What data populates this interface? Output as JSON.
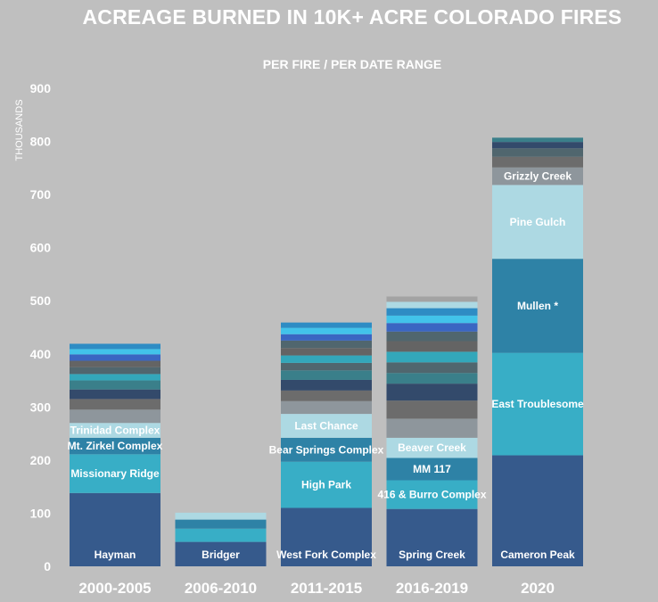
{
  "chart_data": {
    "type": "bar",
    "stacked": true,
    "title": "ACREAGE BURNED IN 10K+ ACRE COLORADO FIRES",
    "subtitle": "PER FIRE / PER DATE RANGE",
    "ylabel": "THOUSANDS",
    "xlabel": "",
    "ylim": [
      0,
      900
    ],
    "yticks": [
      0,
      100,
      200,
      300,
      400,
      500,
      600,
      700,
      800,
      900
    ],
    "grid": false,
    "categories": [
      "2000-2005",
      "2006-2010",
      "2011-2015",
      "2016-2019",
      "2020"
    ],
    "stacks": [
      {
        "category": "2000-2005",
        "segments": [
          {
            "label": "Hayman",
            "value": 138,
            "color": "#365a8c"
          },
          {
            "label": "Missionary Ridge",
            "value": 73,
            "color": "#38aec6"
          },
          {
            "label": "Mt. Zirkel Complex",
            "value": 31,
            "color": "#2e82a6"
          },
          {
            "label": "Trinidad Complex",
            "value": 28,
            "color": "#add9e3"
          },
          {
            "value": 25,
            "color": "#8e969c"
          },
          {
            "value": 20,
            "color": "#6c6c6c"
          },
          {
            "value": 18,
            "color": "#334a6b"
          },
          {
            "value": 17,
            "color": "#3a7f8a"
          },
          {
            "value": 12,
            "color": "#33a7ba"
          },
          {
            "value": 13,
            "color": "#50666e"
          },
          {
            "value": 12,
            "color": "#646464"
          },
          {
            "value": 12,
            "color": "#3a66c2"
          },
          {
            "value": 10,
            "color": "#42c3ea"
          },
          {
            "value": 10,
            "color": "#2e8cc4"
          }
        ]
      },
      {
        "category": "2006-2010",
        "segments": [
          {
            "label": "Bridger",
            "value": 46,
            "color": "#365a8c"
          },
          {
            "value": 25,
            "color": "#38aec6"
          },
          {
            "value": 17,
            "color": "#2e82a6"
          },
          {
            "value": 13,
            "color": "#add9e3"
          }
        ]
      },
      {
        "category": "2011-2015",
        "segments": [
          {
            "label": "West Fork  Complex",
            "value": 110,
            "color": "#365a8c"
          },
          {
            "label": "High Park",
            "value": 87,
            "color": "#38aec6"
          },
          {
            "label": "Bear Springs Complex",
            "value": 45,
            "color": "#2e82a6"
          },
          {
            "label": "Last Chance",
            "value": 45,
            "color": "#add9e3"
          },
          {
            "value": 24,
            "color": "#8e969c"
          },
          {
            "value": 20,
            "color": "#6c6c6c"
          },
          {
            "value": 20,
            "color": "#334a6b"
          },
          {
            "value": 18,
            "color": "#3a7f8a"
          },
          {
            "value": 14,
            "color": "#50666e"
          },
          {
            "value": 14,
            "color": "#33a7ba"
          },
          {
            "value": 14,
            "color": "#646464"
          },
          {
            "value": 14,
            "color": "#50666e"
          },
          {
            "value": 12,
            "color": "#3a66c2"
          },
          {
            "value": 12,
            "color": "#42c3ea"
          },
          {
            "value": 10,
            "color": "#2e8cc4"
          }
        ]
      },
      {
        "category": "2016-2019",
        "segments": [
          {
            "label": "Spring Creek",
            "value": 108,
            "color": "#365a8c"
          },
          {
            "label": "416 & Burro  Complex",
            "value": 54,
            "color": "#38aec6"
          },
          {
            "label": "MM 117",
            "value": 42,
            "color": "#2e82a6"
          },
          {
            "label": "Beaver Creek",
            "value": 38,
            "color": "#add9e3"
          },
          {
            "value": 36,
            "color": "#8e969c"
          },
          {
            "value": 34,
            "color": "#6c6c6c"
          },
          {
            "value": 32,
            "color": "#334a6b"
          },
          {
            "value": 20,
            "color": "#3a7f8a"
          },
          {
            "value": 20,
            "color": "#50666e"
          },
          {
            "value": 20,
            "color": "#33a7ba"
          },
          {
            "value": 20,
            "color": "#646464"
          },
          {
            "value": 18,
            "color": "#50666e"
          },
          {
            "value": 16,
            "color": "#3a66c2"
          },
          {
            "value": 14,
            "color": "#42c3ea"
          },
          {
            "value": 14,
            "color": "#2e8cc4"
          },
          {
            "value": 12,
            "color": "#add9e3"
          },
          {
            "value": 10,
            "color": "#a3a3a3"
          }
        ]
      },
      {
        "category": "2020",
        "segments": [
          {
            "label": "Cameron Peak",
            "value": 209,
            "color": "#365a8c"
          },
          {
            "label": "East Troublesome",
            "value": 193,
            "color": "#38aec6"
          },
          {
            "label": "Mullen *",
            "value": 177,
            "color": "#2e82a6"
          },
          {
            "label": "Pine Gulch",
            "value": 139,
            "color": "#add9e3"
          },
          {
            "label": "Grizzly Creek",
            "value": 33,
            "color": "#8e969c"
          },
          {
            "value": 20,
            "color": "#6c6c6c"
          },
          {
            "value": 16,
            "color": "#50666e"
          },
          {
            "value": 12,
            "color": "#334a6b"
          },
          {
            "value": 8,
            "color": "#3a7f8a"
          }
        ]
      }
    ]
  }
}
